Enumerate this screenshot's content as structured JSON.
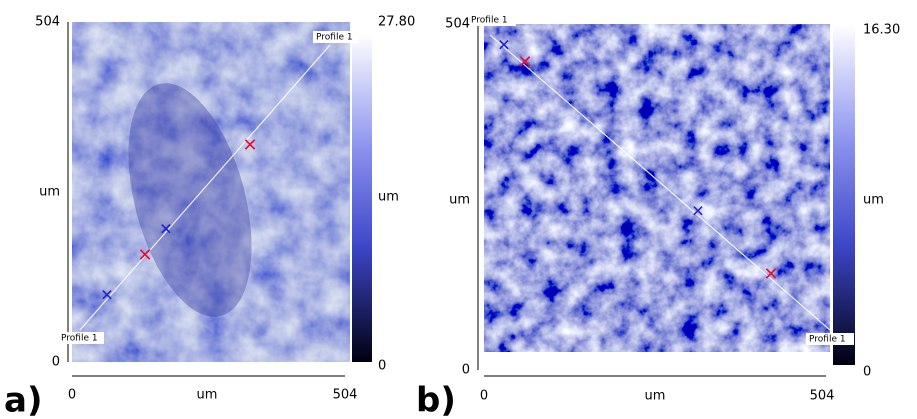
{
  "panels": [
    {
      "label": "a)",
      "y_axis": {
        "top": "504",
        "middle": "um",
        "bottom": "0"
      },
      "x_axis": {
        "left": "0",
        "middle": "um",
        "right": "504"
      },
      "colorbar": {
        "max": "27.80",
        "unit": "um",
        "min": "0"
      },
      "profile_labels": [
        "Profile 1",
        "Profile 1"
      ]
    },
    {
      "label": "b)",
      "y_axis": {
        "top": "504",
        "middle": "um",
        "bottom": "0"
      },
      "x_axis": {
        "left": "0",
        "middle": "um",
        "right": "504"
      },
      "colorbar": {
        "max": "16.30",
        "unit": "um",
        "min": "0"
      },
      "profile_labels": [
        "Profile 1",
        "Profile 1"
      ]
    }
  ]
}
